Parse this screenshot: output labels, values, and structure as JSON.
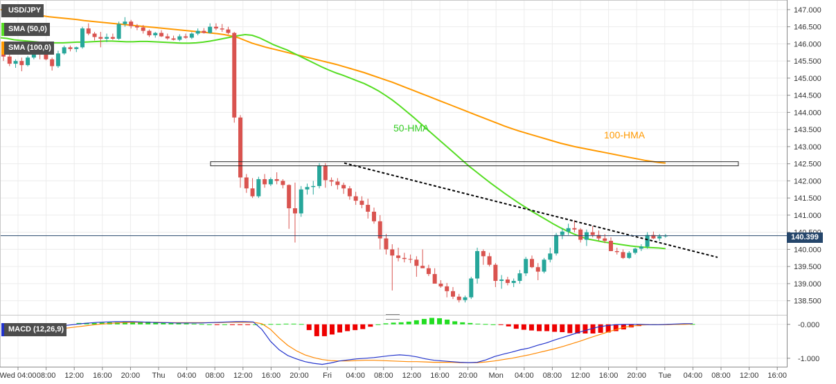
{
  "symbol": "USD/JPY",
  "indicators": {
    "sma50": "SMA (50,0)",
    "sma100": "SMA (100,0)",
    "macd": "MACD (12,26,9)"
  },
  "current_price": "140.399",
  "colors": {
    "up": "#26a69a",
    "up_body": "#2e8b57",
    "down": "#d9534f",
    "hma50": "#55dd22",
    "hma100": "#ff9900",
    "trend": "#000000",
    "macd_line": "#2233cc",
    "signal_line": "#ff8800",
    "hist_pos": "#22dd22",
    "hist_neg": "#ee0000",
    "price_line": "#25466b"
  },
  "chart_data": {
    "type": "candlestick",
    "price_axis": {
      "ticks": [
        "147.000",
        "146.500",
        "146.000",
        "145.500",
        "145.000",
        "144.500",
        "144.000",
        "143.500",
        "143.000",
        "142.500",
        "142.000",
        "141.500",
        "141.000",
        "140.500",
        "140.000",
        "139.500",
        "139.000",
        "138.500"
      ],
      "range": [
        138.15,
        147.2
      ]
    },
    "time_axis": {
      "labels": [
        "Wed 04:00",
        "08:00",
        "12:00",
        "16:00",
        "20:00",
        "Thu",
        "04:00",
        "08:00",
        "12:00",
        "16:00",
        "20:00",
        "Fri",
        "04:00",
        "08:00",
        "12:00",
        "16:00",
        "20:00",
        "Mon",
        "04:00",
        "08:00",
        "12:00",
        "16:00",
        "20:00",
        "Tue",
        "04:00",
        "08:00",
        "12:00",
        "16:00"
      ]
    },
    "annotations": {
      "hma50_label": "50-HMA",
      "hma100_label": "100-HMA",
      "resistance_zone": [
        142.44,
        142.56
      ],
      "trendline": {
        "from": [
          142.52,
          "Fri 00:00"
        ],
        "to": [
          139.93,
          "Tue 06:00"
        ]
      }
    },
    "candles": [
      [
        145.7,
        145.78,
        145.5,
        145.63
      ],
      [
        145.63,
        145.7,
        145.35,
        145.42
      ],
      [
        145.42,
        145.55,
        145.3,
        145.5
      ],
      [
        145.5,
        145.6,
        145.2,
        145.38
      ],
      [
        145.38,
        145.65,
        145.34,
        145.6
      ],
      [
        145.6,
        145.82,
        145.55,
        145.74
      ],
      [
        145.74,
        145.82,
        145.55,
        145.72
      ],
      [
        145.72,
        145.88,
        145.52,
        145.55
      ],
      [
        145.55,
        145.6,
        145.22,
        145.35
      ],
      [
        145.35,
        145.8,
        145.3,
        145.72
      ],
      [
        145.72,
        145.95,
        145.68,
        145.9
      ],
      [
        145.9,
        145.95,
        145.78,
        145.85
      ],
      [
        145.85,
        145.92,
        145.76,
        145.9
      ],
      [
        145.9,
        146.5,
        145.86,
        146.45
      ],
      [
        146.45,
        146.6,
        146.25,
        146.3
      ],
      [
        146.3,
        146.35,
        146.1,
        146.2
      ],
      [
        146.2,
        146.35,
        145.9,
        146.15
      ],
      [
        146.15,
        146.3,
        146.05,
        146.2
      ],
      [
        146.2,
        146.3,
        146.12,
        146.15
      ],
      [
        146.15,
        146.65,
        146.12,
        146.58
      ],
      [
        146.58,
        146.78,
        146.5,
        146.65
      ],
      [
        146.65,
        146.7,
        146.45,
        146.52
      ],
      [
        146.52,
        146.58,
        146.4,
        146.48
      ],
      [
        146.48,
        146.55,
        146.3,
        146.38
      ],
      [
        146.38,
        146.42,
        146.2,
        146.25
      ],
      [
        146.25,
        146.35,
        146.18,
        146.32
      ],
      [
        146.32,
        146.4,
        146.2,
        146.22
      ],
      [
        146.22,
        146.3,
        146.12,
        146.16
      ],
      [
        146.16,
        146.24,
        146.1,
        146.12
      ],
      [
        146.12,
        146.28,
        146.08,
        146.22
      ],
      [
        146.22,
        146.3,
        146.15,
        146.18
      ],
      [
        146.18,
        146.34,
        146.14,
        146.3
      ],
      [
        146.3,
        146.45,
        146.25,
        146.38
      ],
      [
        146.38,
        146.46,
        146.3,
        146.32
      ],
      [
        146.32,
        146.6,
        146.3,
        146.5
      ],
      [
        146.5,
        146.6,
        146.4,
        146.45
      ],
      [
        146.45,
        146.58,
        146.35,
        146.42
      ],
      [
        146.42,
        146.5,
        146.28,
        146.32
      ],
      [
        146.32,
        146.35,
        143.7,
        143.85
      ],
      [
        143.85,
        143.92,
        141.8,
        142.1
      ],
      [
        142.1,
        142.2,
        141.65,
        141.78
      ],
      [
        141.78,
        142.08,
        141.5,
        141.55
      ],
      [
        141.55,
        142.12,
        141.5,
        142.05
      ],
      [
        142.05,
        142.2,
        141.8,
        141.9
      ],
      [
        141.9,
        142.1,
        141.85,
        142.05
      ],
      [
        142.05,
        142.25,
        141.9,
        142.0
      ],
      [
        142.0,
        142.05,
        141.78,
        141.88
      ],
      [
        141.88,
        141.9,
        140.6,
        141.2
      ],
      [
        141.2,
        141.95,
        140.2,
        141.05
      ],
      [
        141.05,
        141.85,
        140.95,
        141.75
      ],
      [
        141.75,
        141.92,
        141.6,
        141.82
      ],
      [
        141.82,
        142.0,
        141.6,
        141.85
      ],
      [
        141.85,
        142.52,
        141.78,
        142.45
      ],
      [
        142.45,
        142.52,
        141.8,
        142.02
      ],
      [
        142.02,
        142.1,
        141.85,
        141.98
      ],
      [
        141.98,
        142.08,
        141.75,
        141.88
      ],
      [
        141.88,
        141.95,
        141.62,
        141.78
      ],
      [
        141.78,
        141.85,
        141.45,
        141.55
      ],
      [
        141.55,
        141.68,
        141.3,
        141.42
      ],
      [
        141.42,
        141.55,
        141.2,
        141.3
      ],
      [
        141.3,
        141.48,
        140.9,
        141.1
      ],
      [
        141.1,
        141.22,
        140.75,
        140.82
      ],
      [
        140.82,
        141.0,
        140.0,
        140.32
      ],
      [
        140.32,
        140.45,
        139.85,
        140.0
      ],
      [
        140.0,
        140.15,
        138.8,
        139.82
      ],
      [
        139.82,
        140.05,
        139.65,
        139.75
      ],
      [
        139.75,
        139.9,
        139.62,
        139.72
      ],
      [
        139.72,
        139.85,
        139.6,
        139.7
      ],
      [
        139.7,
        139.8,
        139.2,
        139.52
      ],
      [
        139.52,
        140.0,
        139.5,
        139.45
      ],
      [
        139.45,
        139.55,
        139.22,
        139.28
      ],
      [
        139.28,
        139.45,
        139.05,
        139.0
      ],
      [
        139.0,
        139.1,
        138.88,
        138.92
      ],
      [
        138.92,
        139.02,
        138.6,
        138.78
      ],
      [
        138.78,
        138.9,
        138.55,
        138.62
      ],
      [
        138.62,
        138.7,
        138.45,
        138.52
      ],
      [
        138.52,
        138.65,
        138.45,
        138.6
      ],
      [
        138.6,
        139.2,
        138.55,
        139.15
      ],
      [
        139.15,
        140.05,
        139.0,
        139.95
      ],
      [
        139.95,
        140.0,
        139.55,
        139.8
      ],
      [
        139.8,
        139.9,
        139.5,
        139.55
      ],
      [
        139.55,
        139.6,
        138.9,
        139.08
      ],
      [
        139.08,
        139.25,
        138.85,
        139.12
      ],
      [
        139.12,
        139.2,
        138.95,
        139.02
      ],
      [
        139.02,
        139.15,
        138.9,
        139.08
      ],
      [
        139.08,
        139.4,
        139.0,
        139.3
      ],
      [
        139.3,
        139.78,
        139.22,
        139.72
      ],
      [
        139.72,
        139.82,
        139.45,
        139.48
      ],
      [
        139.48,
        139.6,
        139.1,
        139.35
      ],
      [
        139.35,
        139.75,
        139.3,
        139.7
      ],
      [
        139.7,
        140.05,
        139.62,
        139.88
      ],
      [
        139.88,
        140.48,
        139.82,
        140.42
      ],
      [
        140.42,
        140.62,
        140.3,
        140.52
      ],
      [
        140.52,
        140.75,
        140.42,
        140.62
      ],
      [
        140.62,
        140.85,
        140.5,
        140.58
      ],
      [
        140.58,
        140.62,
        140.2,
        140.28
      ],
      [
        140.28,
        140.58,
        140.1,
        140.5
      ],
      [
        140.5,
        140.68,
        140.35,
        140.42
      ],
      [
        140.42,
        140.55,
        140.25,
        140.32
      ],
      [
        140.32,
        140.45,
        140.18,
        140.25
      ],
      [
        140.25,
        140.35,
        139.95,
        139.95
      ],
      [
        139.95,
        140.05,
        139.85,
        139.92
      ],
      [
        139.92,
        140.0,
        139.72,
        139.75
      ],
      [
        139.75,
        139.95,
        139.72,
        139.9
      ],
      [
        139.9,
        140.05,
        139.85,
        140.02
      ],
      [
        140.02,
        140.15,
        139.95,
        140.08
      ],
      [
        140.08,
        140.5,
        140.02,
        140.42
      ],
      [
        140.42,
        140.52,
        140.3,
        140.32
      ],
      [
        140.32,
        140.45,
        140.25,
        140.38
      ],
      [
        140.38,
        140.45,
        140.34,
        140.399
      ]
    ],
    "hma50": [
      146.18,
      146.16,
      146.12,
      146.1,
      146.08,
      146.06,
      146.04,
      146.03,
      146.03,
      146.03,
      146.04,
      146.05,
      146.05,
      146.06,
      146.07,
      146.08,
      146.08,
      146.07,
      146.06,
      146.06,
      146.07,
      146.07,
      146.06,
      146.05,
      146.04,
      146.03,
      146.02,
      146.02,
      146.03,
      146.05,
      146.08,
      146.12,
      146.16,
      146.2,
      146.24,
      146.27,
      146.25,
      146.18,
      146.08,
      145.98,
      145.9,
      145.82,
      145.72,
      145.62,
      145.52,
      145.42,
      145.32,
      145.23,
      145.15,
      145.08,
      145.0,
      144.92,
      144.84,
      144.74,
      144.63,
      144.5,
      144.36,
      144.2,
      144.03,
      143.86,
      143.68,
      143.5,
      143.32,
      143.14,
      142.96,
      142.78,
      142.6,
      142.42,
      142.26,
      142.1,
      141.94,
      141.79,
      141.64,
      141.5,
      141.36,
      141.23,
      141.1,
      140.98,
      140.86,
      140.74,
      140.63,
      140.53,
      140.44,
      140.36,
      140.3,
      140.26,
      140.22,
      140.19,
      140.16,
      140.13,
      140.1,
      140.08,
      140.06,
      140.05,
      140.04,
      140.02
    ],
    "hma100": [
      147.0,
      146.97,
      146.94,
      146.91,
      146.88,
      146.85,
      146.82,
      146.79,
      146.77,
      146.75,
      146.73,
      146.71,
      146.68,
      146.66,
      146.64,
      146.62,
      146.6,
      146.58,
      146.56,
      146.54,
      146.52,
      146.5,
      146.48,
      146.46,
      146.44,
      146.42,
      146.4,
      146.38,
      146.36,
      146.34,
      146.32,
      146.3,
      146.27,
      146.23,
      146.18,
      146.1,
      146.02,
      145.96,
      145.9,
      145.85,
      145.8,
      145.75,
      145.7,
      145.65,
      145.6,
      145.55,
      145.5,
      145.45,
      145.4,
      145.34,
      145.28,
      145.22,
      145.16,
      145.09,
      145.02,
      144.95,
      144.88,
      144.8,
      144.72,
      144.64,
      144.56,
      144.48,
      144.4,
      144.32,
      144.24,
      144.16,
      144.08,
      144.0,
      143.92,
      143.84,
      143.76,
      143.68,
      143.6,
      143.53,
      143.46,
      143.4,
      143.34,
      143.28,
      143.22,
      143.16,
      143.1,
      143.05,
      143.0,
      142.96,
      142.92,
      142.88,
      142.84,
      142.8,
      142.76,
      142.72,
      142.68,
      142.64,
      142.6,
      142.57,
      142.54,
      142.52
    ],
    "macd": {
      "axis_ticks": [
        "-0.000",
        "-1.000"
      ],
      "range": [
        -1.25,
        0.22
      ],
      "macd": [
        -0.18,
        -0.17,
        -0.16,
        -0.14,
        -0.12,
        -0.1,
        -0.07,
        -0.04,
        -0.01,
        0.02,
        0.04,
        0.06,
        0.07,
        0.08,
        0.08,
        0.08,
        0.07,
        0.06,
        0.05,
        0.05,
        0.04,
        0.04,
        0.04,
        0.04,
        0.05,
        0.06,
        0.07,
        0.08,
        0.08,
        0.07,
        -0.15,
        -0.5,
        -0.75,
        -0.92,
        -1.02,
        -1.1,
        -1.15,
        -1.18,
        -1.14,
        -1.08,
        -1.05,
        -1.02,
        -1.0,
        -0.98,
        -0.95,
        -0.92,
        -0.9,
        -0.92,
        -0.96,
        -1.02,
        -1.06,
        -1.08,
        -1.1,
        -1.12,
        -1.13,
        -1.12,
        -1.05,
        -0.95,
        -0.88,
        -0.82,
        -0.75,
        -0.7,
        -0.62,
        -0.55,
        -0.46,
        -0.38,
        -0.3,
        -0.22,
        -0.15,
        -0.08,
        -0.04,
        -0.01,
        0.0,
        0.0,
        0.0,
        -0.01,
        -0.01,
        0.0,
        0.01,
        0.02,
        0.02
      ],
      "signal": [
        -0.22,
        -0.21,
        -0.2,
        -0.19,
        -0.18,
        -0.16,
        -0.14,
        -0.12,
        -0.09,
        -0.06,
        -0.03,
        0.0,
        0.02,
        0.04,
        0.05,
        0.06,
        0.06,
        0.06,
        0.06,
        0.05,
        0.05,
        0.05,
        0.05,
        0.05,
        0.05,
        0.05,
        0.06,
        0.06,
        0.06,
        0.06,
        0.02,
        -0.15,
        -0.4,
        -0.62,
        -0.78,
        -0.9,
        -0.98,
        -1.04,
        -1.07,
        -1.08,
        -1.08,
        -1.07,
        -1.06,
        -1.06,
        -1.07,
        -1.08,
        -1.09,
        -1.1,
        -1.1,
        -1.11,
        -1.12,
        -1.12,
        -1.12,
        -1.13,
        -1.13,
        -1.13,
        -1.11,
        -1.08,
        -1.04,
        -1.0,
        -0.95,
        -0.9,
        -0.84,
        -0.78,
        -0.72,
        -0.65,
        -0.57,
        -0.49,
        -0.4,
        -0.32,
        -0.24,
        -0.16,
        -0.09,
        -0.05,
        -0.02,
        -0.01,
        -0.01,
        -0.01,
        -0.0,
        0.0,
        0.01
      ],
      "histogram": [
        0.04,
        0.04,
        0.04,
        0.05,
        0.06,
        0.06,
        0.07,
        0.08,
        0.08,
        0.08,
        0.07,
        0.06,
        0.05,
        0.04,
        0.03,
        0.02,
        0.01,
        0.0,
        -0.01,
        0.0,
        -0.01,
        -0.01,
        -0.01,
        0.0,
        0.0,
        0.01,
        0.01,
        0.02,
        0.02,
        0.01,
        -0.17,
        -0.35,
        -0.35,
        -0.3,
        -0.24,
        -0.2,
        -0.17,
        -0.14,
        -0.07,
        0.0,
        0.03,
        0.05,
        0.06,
        0.08,
        0.12,
        0.16,
        0.19,
        0.18,
        0.14,
        0.09,
        0.06,
        0.04,
        0.02,
        0.01,
        0.0,
        -0.01,
        -0.06,
        -0.13,
        -0.16,
        -0.18,
        -0.2,
        -0.2,
        -0.22,
        -0.23,
        -0.26,
        -0.27,
        -0.27,
        -0.27,
        -0.25,
        -0.24,
        -0.2,
        -0.15,
        -0.09,
        -0.05,
        -0.02,
        0.0,
        0.0,
        0.01,
        0.01,
        0.02,
        0.01
      ]
    }
  }
}
